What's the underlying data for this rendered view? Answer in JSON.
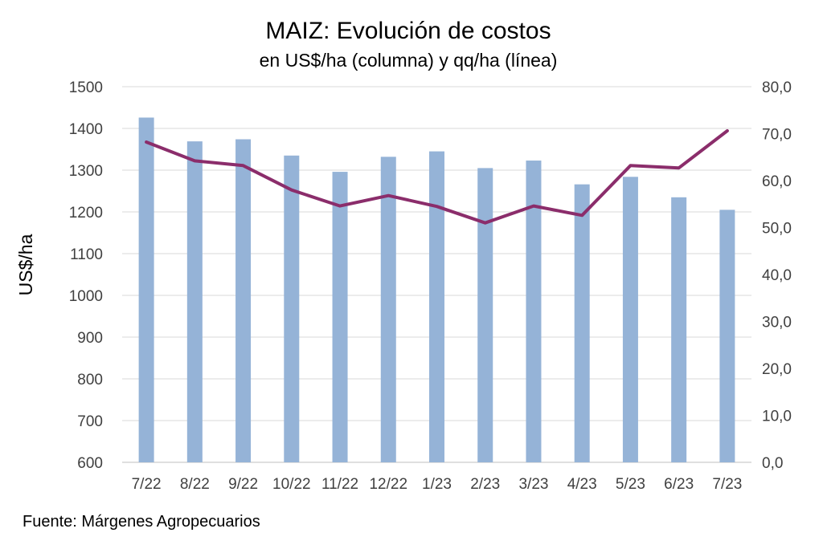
{
  "chart_data": {
    "type": "bar+line",
    "title": "MAIZ: Evolución de costos",
    "subtitle": "en US$/ha (columna) y qq/ha (línea)",
    "ylabel": "US$/ha",
    "y2label": "",
    "source": "Fuente: Márgenes Agropecuarios",
    "categories": [
      "7/22",
      "8/22",
      "9/22",
      "10/22",
      "11/22",
      "12/22",
      "1/23",
      "2/23",
      "3/23",
      "4/23",
      "5/23",
      "6/23",
      "7/23"
    ],
    "ylim": [
      600,
      1500
    ],
    "y_ticks": [
      "1500",
      "1400",
      "1300",
      "1200",
      "1100",
      "1000",
      "900",
      "800",
      "700",
      "600"
    ],
    "y2lim": [
      0,
      80
    ],
    "y2_ticks": [
      "80,0",
      "70,0",
      "60,0",
      "50,0",
      "40,0",
      "30,0",
      "20,0",
      "10,0",
      "0,0"
    ],
    "grid": true,
    "series": [
      {
        "kind": "bar",
        "axis": "left",
        "color": "#95b3d7",
        "values": [
          1426,
          1369,
          1374,
          1335,
          1296,
          1332,
          1345,
          1305,
          1323,
          1266,
          1284,
          1235,
          1205
        ]
      },
      {
        "kind": "line",
        "axis": "right",
        "color": "#8b2d6b",
        "values": [
          68.2,
          64.2,
          63.2,
          58.0,
          54.6,
          56.8,
          54.5,
          51.0,
          54.6,
          52.6,
          63.2,
          62.7,
          70.6
        ]
      }
    ]
  }
}
